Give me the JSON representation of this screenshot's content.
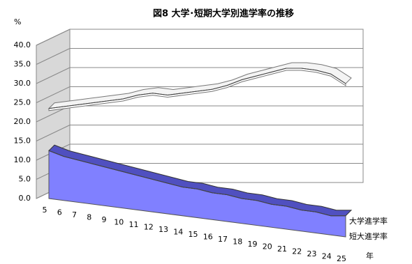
{
  "chart_data": {
    "type": "area3d",
    "title": "図8 大学･短期大学別進学率の推移",
    "y_label": "%",
    "x_label": "年",
    "categories": [
      "5",
      "6",
      "7",
      "8",
      "9",
      "10",
      "11",
      "12",
      "13",
      "14",
      "15",
      "16",
      "17",
      "18",
      "19",
      "20",
      "21",
      "22",
      "23",
      "24",
      "25"
    ],
    "series": [
      {
        "name": "大学進学率",
        "color": "#ffffff",
        "values": [
          23.5,
          24.5,
          25.5,
          26.5,
          27.5,
          28.5,
          30,
          31,
          31,
          32,
          33,
          34,
          35.5,
          37.5,
          39,
          40.5,
          42,
          42.5,
          42.5,
          42,
          40
        ]
      },
      {
        "name": "短大進学率",
        "color": "#8080ff",
        "values": [
          12.5,
          11.5,
          11,
          10.5,
          10,
          9.5,
          9,
          8.5,
          8,
          7.5,
          7.5,
          7,
          7,
          6.5,
          6.5,
          6,
          6,
          5.5,
          5.5,
          5,
          5.5
        ]
      }
    ],
    "ylim": [
      0,
      40
    ],
    "yticks": [
      {
        "value": 0,
        "label": "0.0"
      },
      {
        "value": 5,
        "label": "5.0"
      },
      {
        "value": 10,
        "label": "10.0"
      },
      {
        "value": 15,
        "label": "15.0"
      },
      {
        "value": 20,
        "label": "20.0"
      },
      {
        "value": 25,
        "label": "25.0"
      },
      {
        "value": 30,
        "label": "30.0"
      },
      {
        "value": 35,
        "label": "35.0"
      },
      {
        "value": 40,
        "label": "40.0"
      }
    ],
    "grid": true
  }
}
